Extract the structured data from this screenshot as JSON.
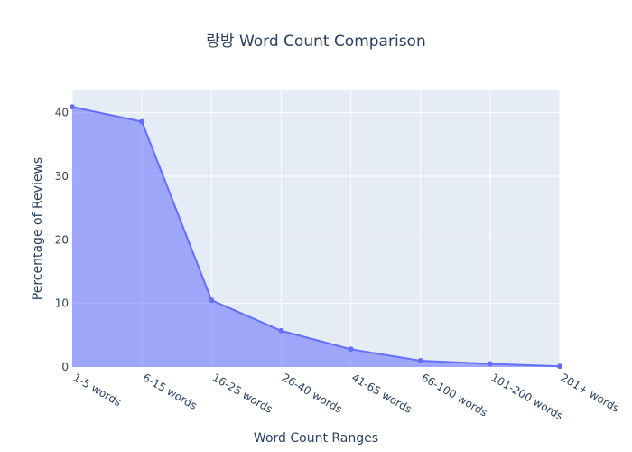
{
  "chart_data": {
    "type": "area",
    "title": "랑방 Word Count Comparison",
    "xlabel": "Word Count Ranges",
    "ylabel": "Percentage of Reviews",
    "categories": [
      "1-5 words",
      "6-15 words",
      "16-25 words",
      "26-40 words",
      "41-65 words",
      "66-100 words",
      "101-200 words",
      "201+ words"
    ],
    "values": [
      40.9,
      38.6,
      10.5,
      5.7,
      2.8,
      1.0,
      0.5,
      0.1
    ],
    "ylim": [
      0,
      43.5
    ],
    "yticks": [
      0,
      10,
      20,
      30,
      40
    ],
    "grid": true,
    "colors": {
      "line": "#636efa",
      "fill": "rgba(99,110,250,0.55)",
      "plot_bg": "#e5ecf6",
      "grid": "#ffffff",
      "text": "#2a3f5f"
    }
  }
}
